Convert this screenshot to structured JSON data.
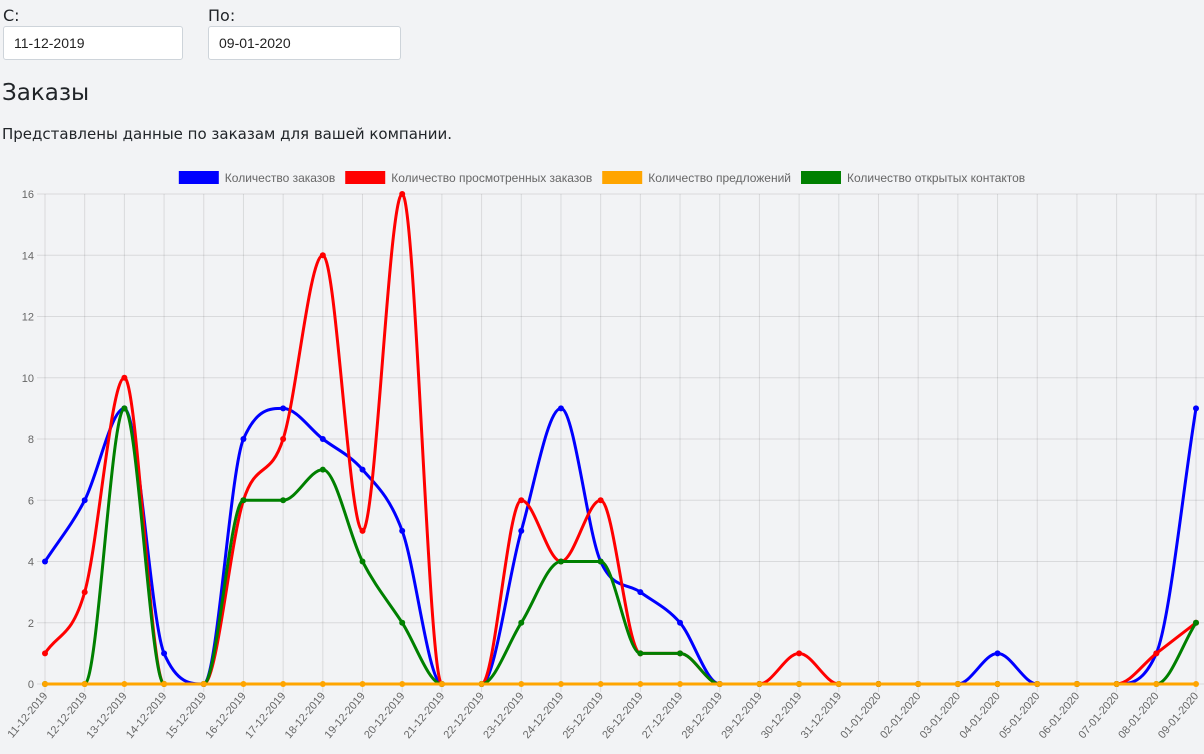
{
  "filters": {
    "from_label": "С:",
    "from_value": "11-12-2019",
    "to_label": "По:",
    "to_value": "09-01-2020"
  },
  "section": {
    "title": "Заказы",
    "description": "Представлены данные по заказам для вашей компании."
  },
  "chart_data": {
    "type": "line",
    "categories": [
      "11-12-2019",
      "12-12-2019",
      "13-12-2019",
      "14-12-2019",
      "15-12-2019",
      "16-12-2019",
      "17-12-2019",
      "18-12-2019",
      "19-12-2019",
      "20-12-2019",
      "21-12-2019",
      "22-12-2019",
      "23-12-2019",
      "24-12-2019",
      "25-12-2019",
      "26-12-2019",
      "27-12-2019",
      "28-12-2019",
      "29-12-2019",
      "30-12-2019",
      "31-12-2019",
      "01-01-2020",
      "02-01-2020",
      "03-01-2020",
      "04-01-2020",
      "05-01-2020",
      "06-01-2020",
      "07-01-2020",
      "08-01-2020",
      "09-01-2020"
    ],
    "series": [
      {
        "name": "Количество заказов",
        "color": "#0000ff",
        "values": [
          4,
          6,
          9,
          1,
          0,
          8,
          9,
          8,
          7,
          5,
          0,
          0,
          5,
          9,
          4,
          3,
          2,
          0,
          0,
          0,
          0,
          0,
          0,
          0,
          1,
          0,
          0,
          0,
          1,
          9
        ]
      },
      {
        "name": "Количество просмотренных заказов",
        "color": "#ff0000",
        "values": [
          1,
          3,
          10,
          0,
          0,
          6,
          8,
          14,
          5,
          16,
          0,
          0,
          6,
          4,
          6,
          1,
          1,
          0,
          0,
          1,
          0,
          0,
          0,
          0,
          0,
          0,
          0,
          0,
          1,
          2
        ]
      },
      {
        "name": "Количество предложений",
        "color": "#ffa500",
        "values": [
          0,
          0,
          0,
          0,
          0,
          0,
          0,
          0,
          0,
          0,
          0,
          0,
          0,
          0,
          0,
          0,
          0,
          0,
          0,
          0,
          0,
          0,
          0,
          0,
          0,
          0,
          0,
          0,
          0,
          0
        ]
      },
      {
        "name": "Количество открытых контактов",
        "color": "#008000",
        "values": [
          0,
          0,
          9,
          0,
          0,
          6,
          6,
          7,
          4,
          2,
          0,
          0,
          2,
          4,
          4,
          1,
          1,
          0,
          0,
          0,
          0,
          0,
          0,
          0,
          0,
          0,
          0,
          0,
          0,
          2
        ]
      }
    ],
    "ylim": [
      0,
      16
    ],
    "yticks": [
      "0",
      "2",
      "4",
      "6",
      "8",
      "10",
      "12",
      "14",
      "16"
    ],
    "grid": true,
    "legend": "top"
  }
}
